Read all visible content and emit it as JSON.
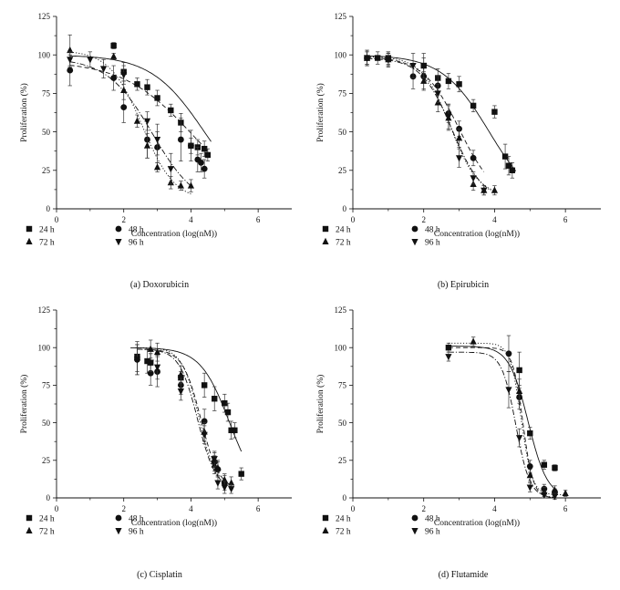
{
  "figure": {
    "captions": [
      "(a)  Doxorubicin",
      "(b)  Epirubicin",
      "(c)  Cisplatin",
      "(d)  Flutamide"
    ]
  },
  "legend_labels": [
    "24 h",
    "48 h",
    "72 h",
    "96 h"
  ],
  "chart_data": [
    {
      "type": "scatter",
      "caption": "(a)  Doxorubicin",
      "xlabel": "Concentration (log(nM))",
      "ylabel": "Proliferation (%)",
      "xlim": [
        0,
        7
      ],
      "ylim": [
        0,
        125
      ],
      "xticks": [
        0,
        2,
        4,
        6
      ],
      "yticks": [
        0,
        25,
        50,
        75,
        100,
        125
      ],
      "grid": false,
      "legend_position": "bottom",
      "series": [
        {
          "name": "24 h",
          "marker": "square",
          "line": "solid",
          "x": [
            1.7,
            2.0,
            2.4,
            2.7,
            3.0,
            3.4,
            3.7,
            4.0,
            4.2,
            4.4,
            4.5
          ],
          "y": [
            106,
            89,
            81,
            79,
            72,
            64,
            56,
            41,
            40,
            39,
            35
          ],
          "err": [
            2,
            6,
            4,
            5,
            5,
            4,
            6,
            5,
            5,
            5,
            4
          ],
          "fit_x": [
            0.4,
            4.6
          ],
          "fit": {
            "top": 100,
            "bottom": 0,
            "ec50": 4.4,
            "hill": 0.55
          }
        },
        {
          "name": "48 h",
          "marker": "circle",
          "line": "dashed",
          "x": [
            0.4,
            1.7,
            2.0,
            2.7,
            3.0,
            3.7,
            4.0,
            4.2,
            4.3,
            4.4
          ],
          "y": [
            90,
            85,
            66,
            45,
            40,
            45,
            41,
            32,
            30,
            26
          ],
          "err": [
            10,
            8,
            10,
            12,
            10,
            14,
            10,
            8,
            6,
            6
          ],
          "fit_x": [
            0.4,
            4.5
          ],
          "fit": {
            "top": 96,
            "bottom": 0,
            "ec50": 4.05,
            "hill": 0.42
          }
        },
        {
          "name": "72 h",
          "marker": "triangle-up",
          "line": "dotted",
          "x": [
            0.4,
            1.7,
            2.0,
            2.4,
            2.7,
            3.0,
            3.4,
            3.7,
            4.0
          ],
          "y": [
            103,
            99,
            77,
            57,
            41,
            27,
            17,
            15,
            15
          ],
          "err": [
            10,
            2,
            6,
            4,
            8,
            3,
            4,
            3,
            4
          ],
          "fit_x": [
            0.4,
            4.0
          ],
          "fit": {
            "top": 103,
            "bottom": 5,
            "ec50": 2.55,
            "hill": 0.9
          }
        },
        {
          "name": "96 h",
          "marker": "triangle-down",
          "line": "dashdot",
          "x": [
            0.4,
            1.0,
            1.4,
            2.0,
            2.7,
            3.0,
            3.4
          ],
          "y": [
            97,
            97,
            91,
            87,
            57,
            45,
            26
          ],
          "err": [
            5,
            5,
            6,
            6,
            6,
            10,
            10
          ],
          "fit_x": [
            0.4,
            4.0
          ],
          "fit": {
            "top": 98,
            "bottom": 0,
            "ec50": 2.85,
            "hill": 0.65
          }
        }
      ]
    },
    {
      "type": "scatter",
      "caption": "(b)  Epirubicin",
      "xlabel": "Concentration (log(nM))",
      "ylabel": "Proliferation (%)",
      "xlim": [
        0,
        7
      ],
      "ylim": [
        0,
        125
      ],
      "xticks": [
        0,
        2,
        4,
        6
      ],
      "yticks": [
        0,
        25,
        50,
        75,
        100,
        125
      ],
      "grid": false,
      "legend_position": "bottom",
      "series": [
        {
          "name": "24 h",
          "marker": "square",
          "line": "solid",
          "x": [
            0.4,
            0.7,
            1.0,
            2.0,
            2.4,
            2.7,
            3.0,
            3.4,
            4.0,
            4.3,
            4.4,
            4.5
          ],
          "y": [
            98,
            98,
            98,
            93,
            85,
            83,
            81,
            67,
            63,
            34,
            28,
            25
          ],
          "err": [
            4,
            4,
            4,
            5,
            6,
            5,
            5,
            4,
            4,
            8,
            6,
            5
          ],
          "fit_x": [
            0.4,
            4.6
          ],
          "fit": {
            "top": 100,
            "bottom": 0,
            "ec50": 3.85,
            "hill": 0.65
          }
        },
        {
          "name": "48 h",
          "marker": "circle",
          "line": "dashed",
          "x": [
            0.4,
            1.0,
            1.7,
            2.0,
            2.4,
            2.7,
            3.0,
            3.4
          ],
          "y": [
            98,
            97,
            86,
            86,
            80,
            62,
            52,
            33
          ],
          "err": [
            5,
            5,
            8,
            8,
            6,
            6,
            5,
            5
          ],
          "fit_x": [
            0.4,
            3.7
          ],
          "fit": {
            "top": 99,
            "bottom": 5,
            "ec50": 3.0,
            "hill": 0.85
          }
        },
        {
          "name": "72 h",
          "marker": "triangle-up",
          "line": "dotted",
          "x": [
            0.4,
            1.0,
            2.0,
            2.4,
            2.7,
            3.0,
            3.4,
            3.7,
            4.0
          ],
          "y": [
            98,
            97,
            83,
            69,
            59,
            46,
            16,
            12,
            12
          ],
          "err": [
            5,
            4,
            6,
            6,
            8,
            6,
            4,
            3,
            3
          ],
          "fit_x": [
            0.4,
            4.0
          ],
          "fit": {
            "top": 99,
            "bottom": 8,
            "ec50": 2.75,
            "hill": 1.1
          }
        },
        {
          "name": "96 h",
          "marker": "triangle-down",
          "line": "dashdot",
          "x": [
            0.4,
            1.0,
            1.7,
            2.0,
            2.4,
            2.7,
            3.0,
            3.4,
            3.7
          ],
          "y": [
            98,
            97,
            93,
            93,
            75,
            60,
            33,
            20,
            12
          ],
          "err": [
            4,
            4,
            8,
            8,
            6,
            8,
            6,
            4,
            3
          ],
          "fit_x": [
            0.4,
            3.9
          ],
          "fit": {
            "top": 98,
            "bottom": 5,
            "ec50": 2.8,
            "hill": 1.0
          }
        }
      ]
    },
    {
      "type": "scatter",
      "caption": "(c)  Cisplatin",
      "xlabel": "Concentration (log(nM))",
      "ylabel": "Proliferation (%)",
      "xlim": [
        0,
        7
      ],
      "ylim": [
        0,
        125
      ],
      "xticks": [
        0,
        2,
        4,
        6
      ],
      "yticks": [
        0,
        25,
        50,
        75,
        100,
        125
      ],
      "grid": false,
      "legend_position": "bottom",
      "series": [
        {
          "name": "24 h",
          "marker": "square",
          "line": "solid",
          "x": [
            2.4,
            2.7,
            2.8,
            3.7,
            4.4,
            4.7,
            5.0,
            5.1,
            5.2,
            5.3,
            5.5
          ],
          "y": [
            94,
            91,
            90,
            80,
            75,
            66,
            63,
            57,
            45,
            45,
            16
          ],
          "err": [
            10,
            8,
            6,
            4,
            8,
            8,
            6,
            6,
            6,
            5,
            4
          ],
          "fit_x": [
            2.2,
            5.5
          ],
          "fit": {
            "top": 100,
            "bottom": 0,
            "ec50": 5.15,
            "hill": 1.0
          }
        },
        {
          "name": "48 h",
          "marker": "circle",
          "line": "dashed",
          "x": [
            2.4,
            2.8,
            3.0,
            3.7,
            4.4,
            4.7,
            4.8,
            5.0
          ],
          "y": [
            92,
            83,
            84,
            75,
            51,
            24,
            19,
            10
          ],
          "err": [
            10,
            8,
            10,
            6,
            8,
            6,
            5,
            5
          ],
          "fit_x": [
            2.4,
            5.2
          ],
          "fit": {
            "top": 99,
            "bottom": 5,
            "ec50": 4.3,
            "hill": 1.6
          }
        },
        {
          "name": "72 h",
          "marker": "triangle-up",
          "line": "dotted",
          "x": [
            2.8,
            3.0,
            3.7,
            4.4,
            4.7,
            4.8,
            5.0,
            5.2
          ],
          "y": [
            99,
            97,
            82,
            44,
            22,
            20,
            12,
            10
          ],
          "err": [
            6,
            6,
            6,
            6,
            6,
            5,
            4,
            4
          ],
          "fit_x": [
            2.4,
            5.2
          ],
          "fit": {
            "top": 100,
            "bottom": 5,
            "ec50": 4.25,
            "hill": 1.7
          }
        },
        {
          "name": "96 h",
          "marker": "triangle-down",
          "line": "dashdot",
          "x": [
            2.4,
            2.8,
            3.0,
            3.7,
            4.4,
            4.7,
            4.8,
            5.0,
            5.2
          ],
          "y": [
            92,
            90,
            87,
            71,
            42,
            26,
            10,
            7,
            6
          ],
          "err": [
            10,
            6,
            8,
            6,
            6,
            5,
            4,
            4,
            3
          ],
          "fit_x": [
            2.4,
            5.2
          ],
          "fit": {
            "top": 99,
            "bottom": 5,
            "ec50": 4.2,
            "hill": 1.6
          }
        }
      ]
    },
    {
      "type": "scatter",
      "caption": "(d)  Flutamide",
      "xlabel": "Concentration (log(nM))",
      "ylabel": "Proliferation (%)",
      "xlim": [
        0,
        7
      ],
      "ylim": [
        0,
        125
      ],
      "xticks": [
        0,
        2,
        4,
        6
      ],
      "yticks": [
        0,
        25,
        50,
        75,
        100,
        125
      ],
      "grid": false,
      "legend_position": "bottom",
      "series": [
        {
          "name": "24 h",
          "marker": "square",
          "line": "solid",
          "x": [
            2.7,
            4.7,
            5.0,
            5.4,
            5.7
          ],
          "y": [
            100,
            85,
            43,
            22,
            20
          ],
          "err": [
            3,
            12,
            4,
            3,
            2
          ],
          "fit_x": [
            2.7,
            5.7
          ],
          "fit": {
            "top": 101,
            "bottom": 0,
            "ec50": 4.95,
            "hill": 1.6
          }
        },
        {
          "name": "48 h",
          "marker": "circle",
          "line": "dashed",
          "x": [
            4.4,
            4.7,
            5.0,
            5.4,
            5.7
          ],
          "y": [
            96,
            67,
            21,
            6,
            4
          ],
          "err": [
            12,
            8,
            4,
            3,
            2
          ],
          "fit_x": [
            2.7,
            5.7
          ],
          "fit": {
            "top": 100,
            "bottom": 0,
            "ec50": 4.8,
            "hill": 3.0
          }
        },
        {
          "name": "72 h",
          "marker": "triangle-up",
          "line": "dotted",
          "x": [
            3.4,
            4.7,
            5.0,
            5.4,
            5.7,
            6.0
          ],
          "y": [
            104,
            71,
            15,
            4,
            5,
            3
          ],
          "err": [
            3,
            8,
            4,
            3,
            3,
            2
          ],
          "fit_x": [
            2.7,
            6.0
          ],
          "fit": {
            "top": 103,
            "bottom": 2,
            "ec50": 4.75,
            "hill": 2.8
          }
        },
        {
          "name": "96 h",
          "marker": "triangle-down",
          "line": "dashdot",
          "x": [
            2.7,
            4.4,
            4.7,
            5.0,
            5.4,
            5.7
          ],
          "y": [
            94,
            72,
            40,
            7,
            2,
            1
          ],
          "err": [
            3,
            12,
            6,
            3,
            2,
            2
          ],
          "fit_x": [
            2.7,
            5.7
          ],
          "fit": {
            "top": 97,
            "bottom": 0,
            "ec50": 4.6,
            "hill": 2.2
          }
        }
      ]
    }
  ]
}
